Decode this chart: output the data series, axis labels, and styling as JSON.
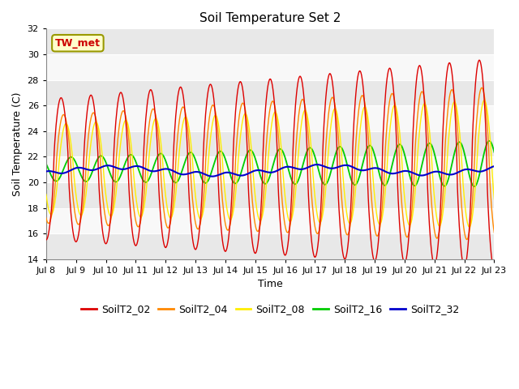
{
  "title": "Soil Temperature Set 2",
  "xlabel": "Time",
  "ylabel": "Soil Temperature (C)",
  "ylim": [
    14,
    32
  ],
  "xlim_days": [
    0,
    15
  ],
  "x_tick_labels": [
    "Jul 8",
    "Jul 9",
    "Jul 10",
    "Jul 11",
    "Jul 12",
    "Jul 13",
    "Jul 14",
    "Jul 15",
    "Jul 16",
    "Jul 17",
    "Jul 18",
    "Jul 19",
    "Jul 20",
    "Jul 21",
    "Jul 22",
    "Jul 23"
  ],
  "annotation_text": "TW_met",
  "annotation_box_facecolor": "#ffffcc",
  "annotation_text_color": "#cc0000",
  "annotation_box_edgecolor": "#999900",
  "series_colors": {
    "SoilT2_02": "#dd0000",
    "SoilT2_04": "#ff8800",
    "SoilT2_08": "#ffee00",
    "SoilT2_16": "#00cc00",
    "SoilT2_32": "#0000cc"
  },
  "fig_bg_color": "#ffffff",
  "plot_bg_color": "#f0f0f0",
  "band_colors": [
    "#e8e8e8",
    "#f8f8f8"
  ],
  "grid_color": "#ffffff",
  "yticks": [
    14,
    16,
    18,
    20,
    22,
    24,
    26,
    28,
    30,
    32
  ],
  "title_fontsize": 11,
  "axis_label_fontsize": 9,
  "tick_fontsize": 8,
  "legend_fontsize": 9
}
